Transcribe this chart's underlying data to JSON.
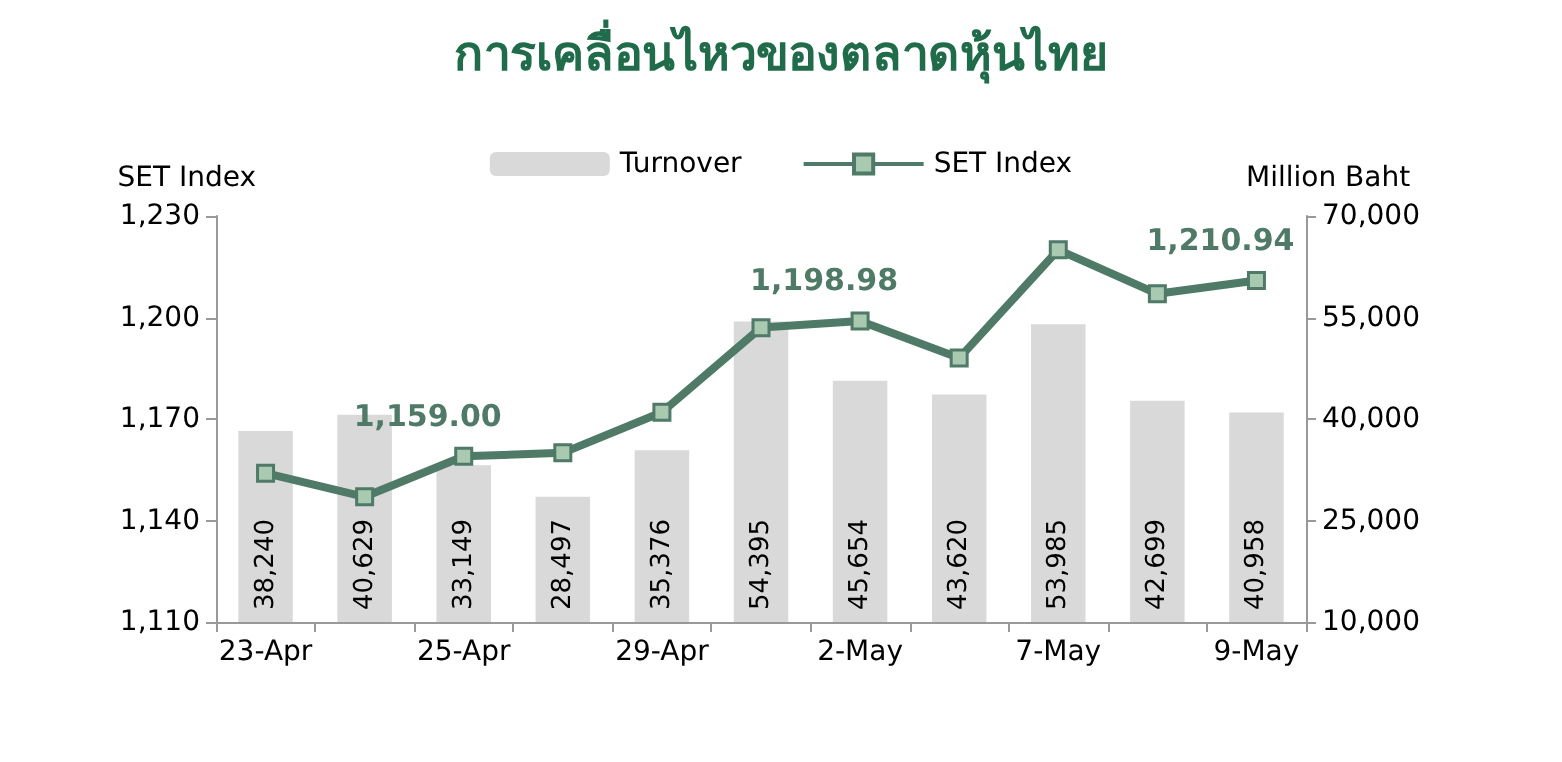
{
  "chart_data": {
    "type": "bar",
    "title": "การเคลื่อนไหวของตลาดหุ้นไทย",
    "ylabel": "SET Index",
    "y2label": "Million Baht",
    "categories": [
      "23-Apr",
      null,
      "25-Apr",
      null,
      "29-Apr",
      null,
      "2-May",
      null,
      "7-May",
      null,
      "9-May"
    ],
    "series": [
      {
        "name": "Turnover",
        "axis": "y2",
        "color": "#d9d9d9",
        "values": [
          38240,
          40629,
          33149,
          28497,
          35376,
          54395,
          45654,
          43620,
          53985,
          42699,
          40958
        ],
        "value_labels": [
          "38,240",
          "40,629",
          "33,149",
          "28,497",
          "35,376",
          "54,395",
          "45,654",
          "43,620",
          "53,985",
          "42,699",
          "40,958"
        ]
      },
      {
        "name": "SET Index",
        "type": "line",
        "color": "#4e7a67",
        "marker": "square",
        "values": [
          1154,
          1147,
          1159.0,
          1160,
          1172,
          1197,
          1198.98,
          1188,
          1220,
          1207,
          1210.94
        ],
        "value_labels": [
          null,
          null,
          "1,159.00",
          null,
          null,
          null,
          "1,198.98",
          null,
          null,
          null,
          "1,210.94"
        ]
      }
    ],
    "ylim": [
      1110,
      1230
    ],
    "yticks": [
      {
        "value": 1110,
        "label": "1,110"
      },
      {
        "value": 1140,
        "label": "1,140"
      },
      {
        "value": 1170,
        "label": "1,170"
      },
      {
        "value": 1200,
        "label": "1,200"
      },
      {
        "value": 1230,
        "label": "1,230"
      }
    ],
    "y2lim": [
      10000,
      70000
    ],
    "y2ticks": [
      {
        "value": 10000,
        "label": "10,000"
      },
      {
        "value": 25000,
        "label": "25,000"
      },
      {
        "value": 40000,
        "label": "40,000"
      },
      {
        "value": 55000,
        "label": "55,000"
      },
      {
        "value": 70000,
        "label": "70,000"
      }
    ],
    "legend": "top",
    "grid": false
  }
}
